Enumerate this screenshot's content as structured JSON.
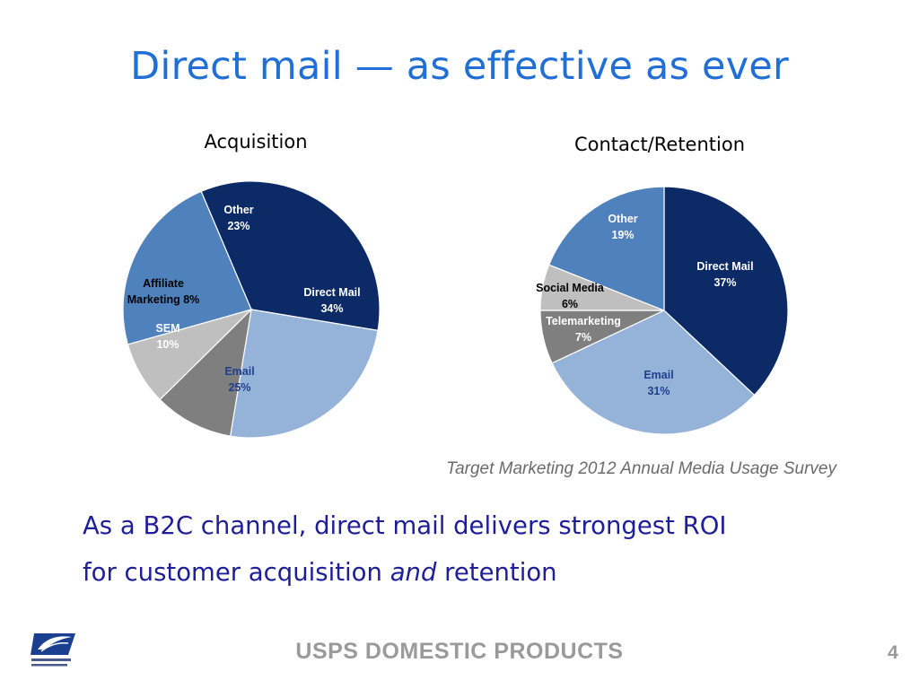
{
  "slide": {
    "title": "Direct mail — as effective as ever",
    "source": "Target Marketing 2012 Annual Media Usage Survey",
    "body_line1": "As a B2C channel, direct mail delivers strongest ROI",
    "body_line2_pre": "for customer acquisition ",
    "body_line2_em": "and",
    "body_line2_post": " retention",
    "footer": "USPS DOMESTIC PRODUCTS",
    "page_number": "4",
    "logo_text": "UNITED STATES POSTAL SERVICE"
  },
  "colors": {
    "title": "#1f6fd6",
    "body": "#1e1e9a",
    "direct_mail": "#0c2a66",
    "email": "#95b3d9",
    "other": "#4f81bd",
    "gray_dark": "#7f7f7f",
    "gray_light": "#bfbfbf",
    "label_dark_text": "#1f3f8f"
  },
  "chart_data": [
    {
      "type": "pie",
      "title": "Acquisition",
      "slices": [
        {
          "name": "Direct Mail",
          "value": 34,
          "label": "34%"
        },
        {
          "name": "Email",
          "value": 25,
          "label": "25%"
        },
        {
          "name": "SEM",
          "value": 10,
          "label": "10%"
        },
        {
          "name": "Affiliate Marketing",
          "value": 8,
          "label": "8%"
        },
        {
          "name": "Other",
          "value": 23,
          "label": "23%"
        }
      ]
    },
    {
      "type": "pie",
      "title": "Contact/Retention",
      "slices": [
        {
          "name": "Direct Mail",
          "value": 37,
          "label": "37%"
        },
        {
          "name": "Email",
          "value": 31,
          "label": "31%"
        },
        {
          "name": "Telemarketing",
          "value": 7,
          "label": "7%"
        },
        {
          "name": "Social Media",
          "value": 6,
          "label": "6%"
        },
        {
          "name": "Other",
          "value": 19,
          "label": "19%"
        }
      ]
    }
  ]
}
